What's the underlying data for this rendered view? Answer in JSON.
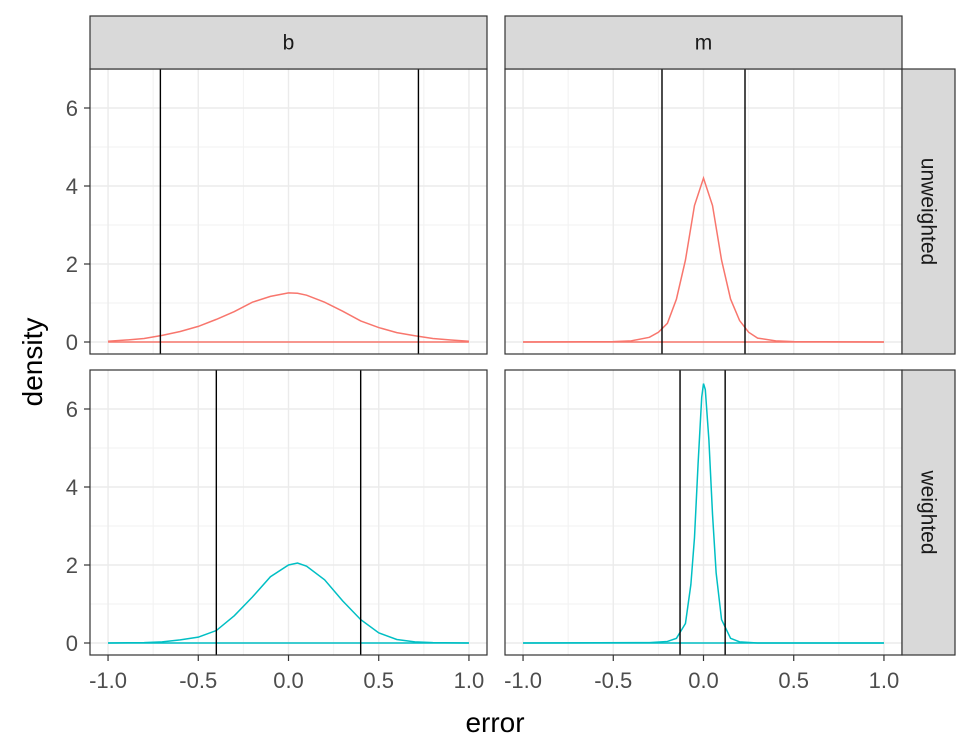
{
  "chart_data": {
    "type": "line",
    "xlabel": "error",
    "ylabel": "density",
    "xlim": [
      -1.0,
      1.0
    ],
    "ylim": [
      0,
      7
    ],
    "x_ticks": [
      "-1.0",
      "-0.5",
      "0.0",
      "0.5",
      "1.0"
    ],
    "y_ticks": [
      "0",
      "2",
      "4",
      "6"
    ],
    "grid": true,
    "facet_columns": [
      "b",
      "m"
    ],
    "facet_rows": [
      "unweighted",
      "weighted"
    ],
    "colors": {
      "unweighted": "#F8766D",
      "weighted": "#00BFC4"
    },
    "panels": [
      {
        "col": "b",
        "row": "unweighted",
        "vlines": [
          -0.71,
          0.72
        ],
        "x": [
          -1.0,
          -0.9,
          -0.8,
          -0.7,
          -0.6,
          -0.5,
          -0.4,
          -0.3,
          -0.2,
          -0.1,
          0.0,
          0.05,
          0.1,
          0.2,
          0.3,
          0.4,
          0.5,
          0.6,
          0.7,
          0.8,
          0.9,
          1.0
        ],
        "y": [
          0.02,
          0.05,
          0.09,
          0.17,
          0.27,
          0.4,
          0.58,
          0.78,
          1.02,
          1.17,
          1.26,
          1.25,
          1.2,
          1.02,
          0.79,
          0.54,
          0.37,
          0.24,
          0.16,
          0.09,
          0.05,
          0.02
        ]
      },
      {
        "col": "m",
        "row": "unweighted",
        "vlines": [
          -0.23,
          0.23
        ],
        "x": [
          -1.0,
          -0.5,
          -0.4,
          -0.3,
          -0.25,
          -0.2,
          -0.15,
          -0.1,
          -0.05,
          0.0,
          0.05,
          0.1,
          0.15,
          0.2,
          0.25,
          0.3,
          0.4,
          0.5,
          1.0
        ],
        "y": [
          0.0,
          0.01,
          0.03,
          0.12,
          0.25,
          0.48,
          1.1,
          2.1,
          3.5,
          4.2,
          3.5,
          2.1,
          1.1,
          0.55,
          0.25,
          0.1,
          0.03,
          0.01,
          0.0
        ]
      },
      {
        "col": "b",
        "row": "weighted",
        "vlines": [
          -0.4,
          0.4
        ],
        "x": [
          -1.0,
          -0.8,
          -0.7,
          -0.6,
          -0.5,
          -0.4,
          -0.3,
          -0.2,
          -0.1,
          0.0,
          0.05,
          0.1,
          0.2,
          0.3,
          0.4,
          0.5,
          0.6,
          0.7,
          0.8,
          1.0
        ],
        "y": [
          0.0,
          0.01,
          0.03,
          0.08,
          0.15,
          0.32,
          0.7,
          1.18,
          1.7,
          2.0,
          2.05,
          1.97,
          1.62,
          1.08,
          0.6,
          0.26,
          0.09,
          0.03,
          0.01,
          0.0
        ]
      },
      {
        "col": "m",
        "row": "weighted",
        "vlines": [
          -0.13,
          0.12
        ],
        "x": [
          -1.0,
          -0.3,
          -0.2,
          -0.15,
          -0.1,
          -0.07,
          -0.05,
          -0.03,
          -0.01,
          0.0,
          0.01,
          0.03,
          0.05,
          0.07,
          0.1,
          0.15,
          0.2,
          0.3,
          1.0
        ],
        "y": [
          0.0,
          0.01,
          0.04,
          0.12,
          0.5,
          1.5,
          2.7,
          4.6,
          6.3,
          6.65,
          6.5,
          5.2,
          3.3,
          1.8,
          0.6,
          0.12,
          0.03,
          0.0,
          0.0
        ]
      }
    ]
  }
}
